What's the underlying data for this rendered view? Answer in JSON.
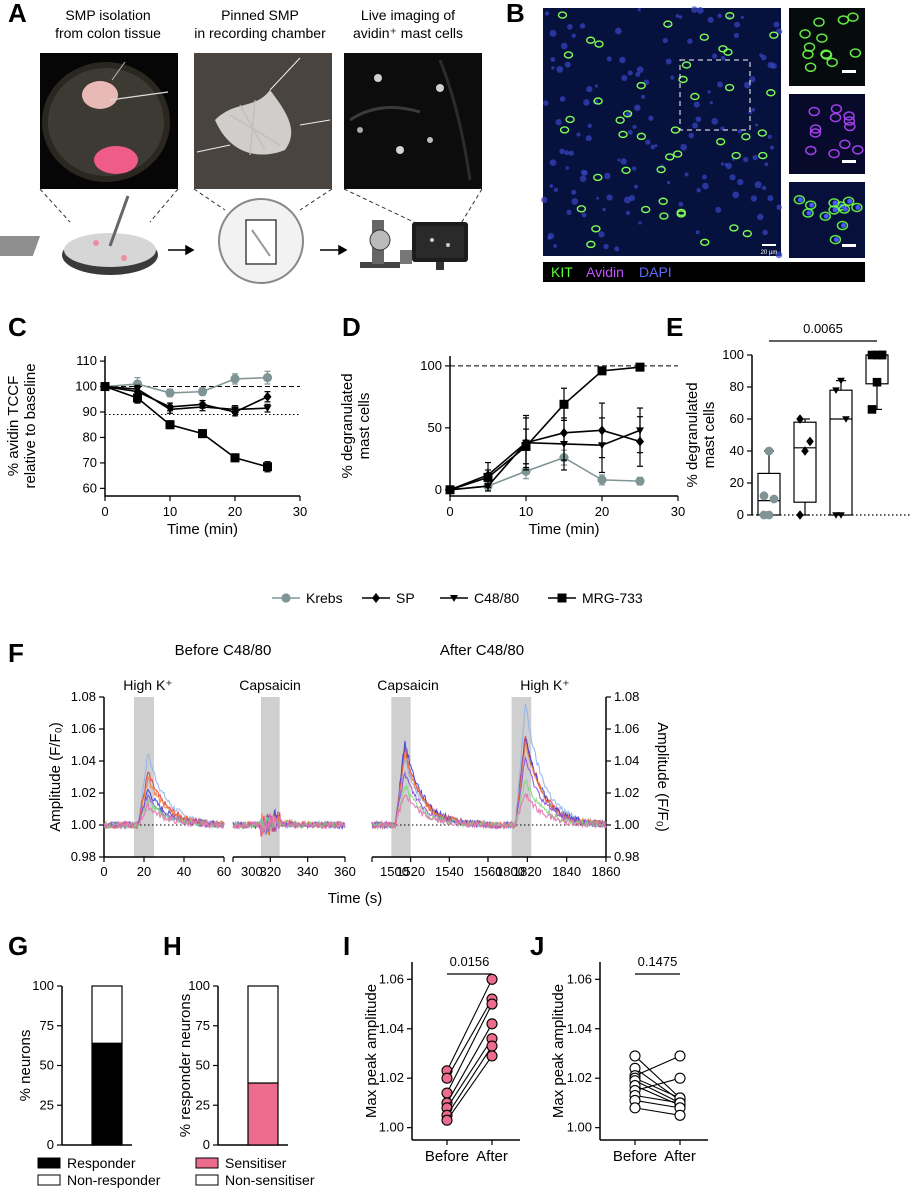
{
  "panels": {
    "A": {
      "letter": "A",
      "captions": [
        [
          "SMP isolation",
          "from colon tissue"
        ],
        [
          "Pinned SMP",
          "in recording chamber"
        ],
        [
          "Live imaging of",
          "avidin⁺ mast cells"
        ]
      ]
    },
    "B": {
      "letter": "B",
      "scale_label": "20 µm",
      "legend": [
        {
          "label": "KIT",
          "color": "#5cff3a"
        },
        {
          "label": "Avidin",
          "color": "#c053ff"
        },
        {
          "label": "DAPI",
          "color": "#5d6bff"
        }
      ]
    },
    "C": {
      "letter": "C"
    },
    "D": {
      "letter": "D"
    },
    "E": {
      "letter": "E"
    },
    "F": {
      "letter": "F",
      "headers": {
        "before": "Before C48/80",
        "after": "After C48/80"
      },
      "stim_labels": [
        "High K⁺",
        "Capsaicin",
        "Capsaicin",
        "High K⁺"
      ]
    },
    "G": {
      "letter": "G"
    },
    "H": {
      "letter": "H"
    },
    "I": {
      "letter": "I"
    },
    "J": {
      "letter": "J"
    }
  },
  "legend_CD": [
    {
      "label": "Krebs",
      "marker": "circle",
      "color": "#7f9595"
    },
    {
      "label": "SP",
      "marker": "diamond",
      "color": "#000000"
    },
    {
      "label": "C48/80",
      "marker": "triangle-down",
      "color": "#000000"
    },
    {
      "label": "MRG-733",
      "marker": "square",
      "color": "#000000"
    }
  ],
  "legend_G": [
    {
      "label": "Responder",
      "color": "#000000"
    },
    {
      "label": "Non-responder",
      "color": "#ffffff"
    }
  ],
  "legend_H": [
    {
      "label": "Sensitiser",
      "color": "#ec6c8e"
    },
    {
      "label": "Non-sensitiser",
      "color": "#ffffff"
    }
  ],
  "chart_data": [
    {
      "id": "C",
      "type": "line",
      "title": "",
      "xlabel": "Time (min)",
      "ylabel": "% avidin TCCF relative to baseline",
      "x": [
        0,
        5,
        10,
        15,
        20,
        25
      ],
      "xlim": [
        0,
        30
      ],
      "ylim": [
        57,
        112
      ],
      "xticks": [
        0,
        10,
        20,
        30
      ],
      "yticks": [
        60,
        70,
        80,
        90,
        100,
        110
      ],
      "ref_lines": [
        {
          "y": 100,
          "style": "dashed"
        },
        {
          "y": 89,
          "style": "dotted"
        }
      ],
      "series": [
        {
          "name": "Krebs",
          "values": [
            100,
            101,
            97.5,
            98,
            103,
            103.5
          ],
          "err": [
            0,
            2.5,
            1.5,
            1.5,
            2,
            2.5
          ]
        },
        {
          "name": "SP",
          "values": [
            100,
            98,
            92,
            93,
            90,
            96
          ],
          "err": [
            0,
            2,
            1.5,
            1.5,
            1.5,
            2
          ]
        },
        {
          "name": "C48/80",
          "values": [
            100,
            99,
            91,
            92,
            91,
            91.5
          ],
          "err": [
            0,
            1.5,
            1.5,
            1.5,
            1.5,
            1.5
          ]
        },
        {
          "name": "MRG-733",
          "values": [
            100,
            95.5,
            85,
            81.5,
            72,
            68.5
          ],
          "err": [
            0,
            2,
            1.5,
            1.5,
            1.5,
            2
          ]
        }
      ]
    },
    {
      "id": "D",
      "type": "line",
      "title": "",
      "xlabel": "Time (min)",
      "ylabel": "% degranulated mast cells",
      "x": [
        0,
        5,
        10,
        15,
        20,
        25
      ],
      "xlim": [
        0,
        30
      ],
      "ylim": [
        -5,
        108
      ],
      "xticks": [
        0,
        10,
        20,
        30
      ],
      "yticks": [
        0,
        50,
        100
      ],
      "ref_lines": [
        {
          "y": 100,
          "style": "dashed"
        }
      ],
      "series": [
        {
          "name": "Krebs",
          "values": [
            0,
            3,
            15,
            26,
            8,
            7
          ],
          "err": [
            0,
            3,
            6,
            6,
            4,
            3
          ]
        },
        {
          "name": "SP",
          "values": [
            0,
            12,
            38,
            46,
            48,
            39
          ],
          "err": [
            0,
            10,
            20,
            22,
            22,
            20
          ]
        },
        {
          "name": "C48/80",
          "values": [
            0,
            3,
            38,
            37,
            36,
            48
          ],
          "err": [
            0,
            4,
            22,
            21,
            22,
            18
          ]
        },
        {
          "name": "MRG-733",
          "values": [
            0,
            10,
            35,
            69,
            96,
            99
          ],
          "err": [
            0,
            6,
            14,
            13,
            2,
            1
          ]
        }
      ]
    },
    {
      "id": "E",
      "type": "box",
      "title": "",
      "xlabel": "",
      "ylabel": "% degranulated mast cells",
      "ylim": [
        0,
        100
      ],
      "yticks": [
        0,
        20,
        40,
        60,
        80,
        100
      ],
      "significance": {
        "label": "0.0065",
        "from": 1,
        "to": 4
      },
      "ref_lines": [
        {
          "y": 0,
          "style": "dotted"
        }
      ],
      "groups": [
        {
          "name": "Krebs",
          "min": 0,
          "q1": 0,
          "median": 9,
          "q3": 26,
          "max": 40,
          "points": [
            0,
            0,
            10,
            12,
            40
          ]
        },
        {
          "name": "SP",
          "min": 0,
          "q1": 8,
          "median": 42,
          "q3": 58,
          "max": 60,
          "points": [
            0,
            40,
            46,
            60
          ]
        },
        {
          "name": "C48/80",
          "min": 0,
          "q1": 0,
          "median": 60,
          "q3": 78,
          "max": 84,
          "points": [
            0,
            0,
            60,
            78,
            84
          ]
        },
        {
          "name": "MRG-733",
          "min": 66,
          "q1": 82,
          "median": 100,
          "q3": 100,
          "max": 100,
          "points": [
            66,
            83,
            100,
            100,
            100,
            100
          ]
        }
      ]
    },
    {
      "id": "F",
      "type": "line",
      "title": "",
      "xlabel": "Time (s)",
      "ylabel": "Amplitude (F/F₀)",
      "ylim": [
        0.98,
        1.08
      ],
      "yticks": [
        0.98,
        1.0,
        1.02,
        1.04,
        1.06,
        1.08
      ],
      "segments": [
        {
          "xlim": [
            0,
            60
          ],
          "xticks": [
            0,
            20,
            40,
            60
          ],
          "stim": [
            15,
            25
          ],
          "stim_label": "High K⁺"
        },
        {
          "xlim": [
            300,
            360
          ],
          "xticks": [
            300,
            320,
            340,
            360
          ],
          "stim": [
            315,
            325
          ],
          "stim_label": "Capsaicin"
        },
        {
          "xlim": [
            1500,
            1560
          ],
          "xticks": [
            1500,
            1520,
            1540,
            1560
          ],
          "stim": [
            1510,
            1520
          ],
          "stim_label": "Capsaicin"
        },
        {
          "xlim": [
            1800,
            1860
          ],
          "xticks": [
            1800,
            1820,
            1840,
            1860
          ],
          "stim": [
            1812,
            1822
          ],
          "stim_label": "High K⁺"
        }
      ],
      "series": [
        {
          "name": "neuron-1",
          "color": "#8fb2ea",
          "peaks": [
            1.045,
            1.003,
            1.042,
            1.076
          ]
        },
        {
          "name": "neuron-2",
          "color": "#e73a3a",
          "peaks": [
            1.033,
            1.002,
            1.047,
            1.057
          ]
        },
        {
          "name": "neuron-3",
          "color": "#3b3fd9",
          "peaks": [
            1.022,
            1.002,
            1.052,
            1.055
          ]
        },
        {
          "name": "neuron-4",
          "color": "#f07c38",
          "peaks": [
            1.03,
            1.003,
            1.045,
            1.052
          ]
        },
        {
          "name": "neuron-5",
          "color": "#8f4fd6",
          "peaks": [
            1.019,
            1.001,
            1.033,
            1.042
          ]
        },
        {
          "name": "neuron-6",
          "color": "#7fd67f",
          "peaks": [
            1.015,
            1.002,
            1.025,
            1.028
          ]
        },
        {
          "name": "neuron-7",
          "color": "#e66fb0",
          "peaks": [
            1.012,
            1.001,
            1.02,
            1.02
          ]
        }
      ]
    },
    {
      "id": "G",
      "type": "bar",
      "title": "",
      "xlabel": "",
      "ylabel": "% neurons",
      "ylim": [
        0,
        100
      ],
      "yticks": [
        0,
        25,
        50,
        75,
        100
      ],
      "stack": [
        {
          "name": "Responder",
          "value": 64
        },
        {
          "name": "Non-responder",
          "value": 36
        }
      ]
    },
    {
      "id": "H",
      "type": "bar",
      "title": "",
      "xlabel": "",
      "ylabel": "% responder neurons",
      "ylim": [
        0,
        100
      ],
      "yticks": [
        0,
        25,
        50,
        75,
        100
      ],
      "stack": [
        {
          "name": "Sensitiser",
          "value": 39
        },
        {
          "name": "Non-sensitiser",
          "value": 61
        }
      ]
    },
    {
      "id": "I",
      "type": "scatter",
      "title": "",
      "xlabel": "",
      "ylabel": "Max peak amplitude",
      "categories": [
        "Before",
        "After"
      ],
      "ylim": [
        0.995,
        1.067
      ],
      "yticks": [
        1.0,
        1.02,
        1.04,
        1.06
      ],
      "significance": {
        "label": "0.0156"
      },
      "pairs": [
        [
          1.023,
          1.06
        ],
        [
          1.02,
          1.052
        ],
        [
          1.014,
          1.05
        ],
        [
          1.01,
          1.042
        ],
        [
          1.008,
          1.036
        ],
        [
          1.005,
          1.033
        ],
        [
          1.003,
          1.029
        ]
      ]
    },
    {
      "id": "J",
      "type": "scatter",
      "title": "",
      "xlabel": "",
      "ylabel": "Max peak amplitude",
      "categories": [
        "Before",
        "After"
      ],
      "ylim": [
        0.995,
        1.067
      ],
      "yticks": [
        1.0,
        1.02,
        1.04,
        1.06
      ],
      "significance": {
        "label": "0.1475"
      },
      "pairs": [
        [
          1.029,
          1.012
        ],
        [
          1.024,
          1.011
        ],
        [
          1.021,
          1.029
        ],
        [
          1.02,
          1.012
        ],
        [
          1.019,
          1.01
        ],
        [
          1.017,
          1.009
        ],
        [
          1.015,
          1.02
        ],
        [
          1.013,
          1.01
        ],
        [
          1.011,
          1.008
        ],
        [
          1.008,
          1.005
        ]
      ]
    }
  ]
}
